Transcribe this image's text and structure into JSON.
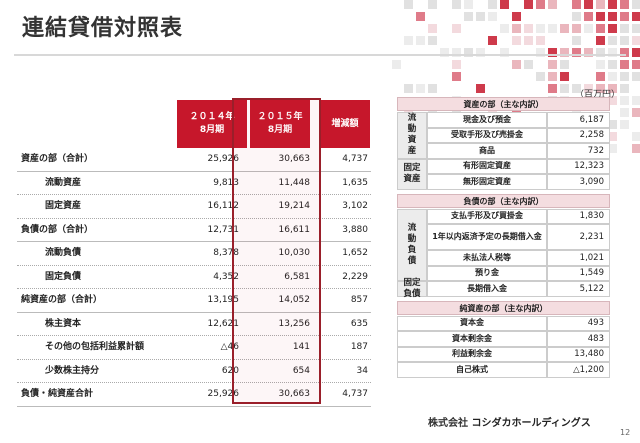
{
  "title": "連結貸借対照表",
  "unit": "（百万円）",
  "left_table": {
    "headers": [
      {
        "line1": "２０１４年",
        "line2": "8月期"
      },
      {
        "line1": "２０１５年",
        "line2": "8月期"
      },
      {
        "line1": "増減額",
        "line2": ""
      }
    ],
    "rows": [
      {
        "label": "資産の部（合計）",
        "v2014": "25,926",
        "v2015": "30,663",
        "diff": "4,737",
        "sub": false
      },
      {
        "label": "流動資産",
        "v2014": "9,813",
        "v2015": "11,448",
        "diff": "1,635",
        "sub": true
      },
      {
        "label": "固定資産",
        "v2014": "16,112",
        "v2015": "19,214",
        "diff": "3,102",
        "sub": true
      },
      {
        "label": "負債の部（合計）",
        "v2014": "12,731",
        "v2015": "16,611",
        "diff": "3,880",
        "sub": false
      },
      {
        "label": "流動負債",
        "v2014": "8,378",
        "v2015": "10,030",
        "diff": "1,652",
        "sub": true
      },
      {
        "label": "固定負債",
        "v2014": "4,352",
        "v2015": "6,581",
        "diff": "2,229",
        "sub": true
      },
      {
        "label": "純資産の部（合計）",
        "v2014": "13,195",
        "v2015": "14,052",
        "diff": "857",
        "sub": false
      },
      {
        "label": "株主資本",
        "v2014": "12,621",
        "v2015": "13,256",
        "diff": "635",
        "sub": true
      },
      {
        "label": "その他の包括利益累計額",
        "v2014": "△46",
        "v2015": "141",
        "diff": "187",
        "sub": true
      },
      {
        "label": "少数株主持分",
        "v2014": "620",
        "v2015": "654",
        "diff": "34",
        "sub": true
      },
      {
        "label": "負債・純資産合計",
        "v2014": "25,926",
        "v2015": "30,663",
        "diff": "4,737",
        "sub": false
      }
    ]
  },
  "right_table": {
    "assets": {
      "header": "資産の部（主な内訳）",
      "groups": [
        {
          "label": "流\n動\n資\n産",
          "items": [
            {
              "name": "現金及び預金",
              "value": "6,187"
            },
            {
              "name": "受取手形及び売掛金",
              "value": "2,258"
            },
            {
              "name": "商品",
              "value": "732"
            }
          ]
        },
        {
          "label": "固定\n資産",
          "items": [
            {
              "name": "有形固定資産",
              "value": "12,323"
            },
            {
              "name": "無形固定資産",
              "value": "3,090"
            }
          ]
        }
      ]
    },
    "liabilities": {
      "header": "負債の部（主な内訳）",
      "groups": [
        {
          "label": "流\n動\n負\n債",
          "items": [
            {
              "name": "支払手形及び買掛金",
              "value": "1,830"
            },
            {
              "name": "1年以内返済予定の長期借入金",
              "value": "2,231"
            },
            {
              "name": "未払法人税等",
              "value": "1,021"
            },
            {
              "name": "預り金",
              "value": "1,549"
            }
          ]
        },
        {
          "label": "固定\n負債",
          "items": [
            {
              "name": "長期借入金",
              "value": "5,122"
            }
          ]
        }
      ]
    },
    "net_assets": {
      "header": "純資産の部（主な内訳）",
      "items": [
        {
          "name": "資本金",
          "value": "493"
        },
        {
          "name": "資本剰余金",
          "value": "483"
        },
        {
          "name": "利益剰余金",
          "value": "13,480"
        },
        {
          "name": "自己株式",
          "value": "△1,200"
        }
      ]
    }
  },
  "footer": {
    "company_prefix": "株式会社",
    "company_name": "コシダカホールディングス"
  },
  "page_number": "12",
  "colors": {
    "accent": "#c6172b",
    "highlight_border": "#9a1f2a",
    "section_bg": "#f4dde0"
  }
}
